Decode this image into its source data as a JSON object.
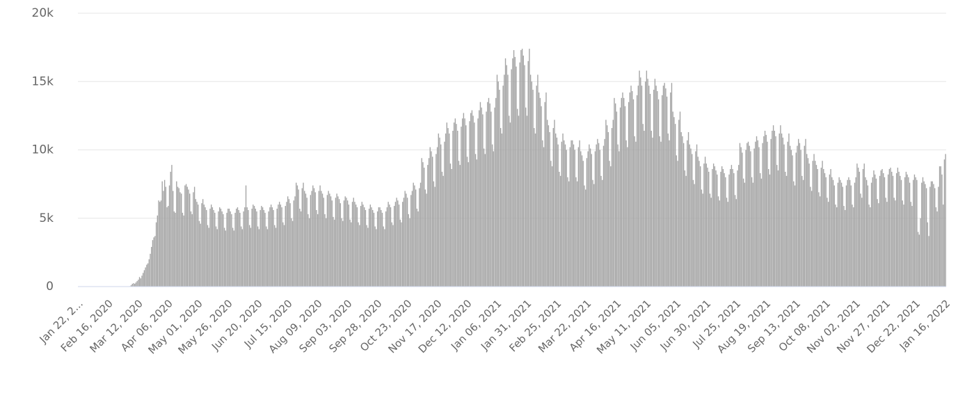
{
  "chart_data": {
    "type": "bar",
    "color": "#a3a3a3",
    "grid": true,
    "ylim": [
      0,
      20000
    ],
    "yticks": [
      0,
      {
        "value": 5000,
        "label": "5k"
      },
      {
        "value": 10000,
        "label": "10k"
      },
      {
        "value": 15000,
        "label": "15k"
      },
      {
        "value": 20000,
        "label": "20k"
      }
    ],
    "categories": [
      "Jan 22, 2...",
      null,
      null,
      null,
      null,
      null,
      null,
      null,
      null,
      null,
      null,
      null,
      null,
      null,
      null,
      null,
      null,
      null,
      null,
      null,
      null,
      null,
      null,
      null,
      null,
      "Feb 16, 2020",
      null,
      null,
      null,
      null,
      null,
      null,
      null,
      null,
      null,
      null,
      null,
      null,
      null,
      null,
      null,
      null,
      null,
      null,
      null,
      null,
      null,
      null,
      null,
      null,
      "Mar 12, 2020",
      null,
      null,
      null,
      null,
      null,
      null,
      null,
      null,
      null,
      null,
      null,
      null,
      null,
      null,
      null,
      null,
      null,
      null,
      null,
      null,
      null,
      null,
      null,
      null,
      "Apr 06, 2020",
      null,
      null,
      null,
      null,
      null,
      null,
      null,
      null,
      null,
      null,
      null,
      null,
      null,
      null,
      null,
      null,
      null,
      null,
      null,
      null,
      null,
      null,
      null,
      null,
      "May 01, 2020",
      null,
      null,
      null,
      null,
      null,
      null,
      null,
      null,
      null,
      null,
      null,
      null,
      null,
      null,
      null,
      null,
      null,
      null,
      null,
      null,
      null,
      null,
      null,
      null,
      "May 26, 2020",
      null,
      null,
      null,
      null,
      null,
      null,
      null,
      null,
      null,
      null,
      null,
      null,
      null,
      null,
      null,
      null,
      null,
      null,
      null,
      null,
      null,
      null,
      null,
      null,
      "Jun 20, 2020",
      null,
      null,
      null,
      null,
      null,
      null,
      null,
      null,
      null,
      null,
      null,
      null,
      null,
      null,
      null,
      null,
      null,
      null,
      null,
      null,
      null,
      null,
      null,
      null,
      "Jul 15, 2020",
      null,
      null,
      null,
      null,
      null,
      null,
      null,
      null,
      null,
      null,
      null,
      null,
      null,
      null,
      null,
      null,
      null,
      null,
      null,
      null,
      null,
      null,
      null,
      null,
      "Aug 09, 2020",
      null,
      null,
      null,
      null,
      null,
      null,
      null,
      null,
      null,
      null,
      null,
      null,
      null,
      null,
      null,
      null,
      null,
      null,
      null,
      null,
      null,
      null,
      null,
      null,
      "Sep 03, 2020",
      null,
      null,
      null,
      null,
      null,
      null,
      null,
      null,
      null,
      null,
      null,
      null,
      null,
      null,
      null,
      null,
      null,
      null,
      null,
      null,
      null,
      null,
      null,
      null,
      "Sep 28, 2020",
      null,
      null,
      null,
      null,
      null,
      null,
      null,
      null,
      null,
      null,
      null,
      null,
      null,
      null,
      null,
      null,
      null,
      null,
      null,
      null,
      null,
      null,
      null,
      null,
      "Oct 23, 2020",
      null,
      null,
      null,
      null,
      null,
      null,
      null,
      null,
      null,
      null,
      null,
      null,
      null,
      null,
      null,
      null,
      null,
      null,
      null,
      null,
      null,
      null,
      null,
      null,
      "Nov 17, 2020",
      null,
      null,
      null,
      null,
      null,
      null,
      null,
      null,
      null,
      null,
      null,
      null,
      null,
      null,
      null,
      null,
      null,
      null,
      null,
      null,
      null,
      null,
      null,
      null,
      "Dec 12, 2020",
      null,
      null,
      null,
      null,
      null,
      null,
      null,
      null,
      null,
      null,
      null,
      null,
      null,
      null,
      null,
      null,
      null,
      null,
      null,
      null,
      null,
      null,
      null,
      null,
      "Jan 06, 2021",
      null,
      null,
      null,
      null,
      null,
      null,
      null,
      null,
      null,
      null,
      null,
      null,
      null,
      null,
      null,
      null,
      null,
      null,
      null,
      null,
      null,
      null,
      null,
      null,
      "Jan 31, 2021",
      null,
      null,
      null,
      null,
      null,
      null,
      null,
      null,
      null,
      null,
      null,
      null,
      null,
      null,
      null,
      null,
      null,
      null,
      null,
      null,
      null,
      null,
      null,
      null,
      "Feb 25, 2021",
      null,
      null,
      null,
      null,
      null,
      null,
      null,
      null,
      null,
      null,
      null,
      null,
      null,
      null,
      null,
      null,
      null,
      null,
      null,
      null,
      null,
      null,
      null,
      null,
      "Mar 22, 2021",
      null,
      null,
      null,
      null,
      null,
      null,
      null,
      null,
      null,
      null,
      null,
      null,
      null,
      null,
      null,
      null,
      null,
      null,
      null,
      null,
      null,
      null,
      null,
      null,
      "Apr 16, 2021",
      null,
      null,
      null,
      null,
      null,
      null,
      null,
      null,
      null,
      null,
      null,
      null,
      null,
      null,
      null,
      null,
      null,
      null,
      null,
      null,
      null,
      null,
      null,
      null,
      "May 11, 2021",
      null,
      null,
      null,
      null,
      null,
      null,
      null,
      null,
      null,
      null,
      null,
      null,
      null,
      null,
      null,
      null,
      null,
      null,
      null,
      null,
      null,
      null,
      null,
      null,
      "Jun 05, 2021",
      null,
      null,
      null,
      null,
      null,
      null,
      null,
      null,
      null,
      null,
      null,
      null,
      null,
      null,
      null,
      null,
      null,
      null,
      null,
      null,
      null,
      null,
      null,
      null,
      "Jun 30, 2021",
      null,
      null,
      null,
      null,
      null,
      null,
      null,
      null,
      null,
      null,
      null,
      null,
      null,
      null,
      null,
      null,
      null,
      null,
      null,
      null,
      null,
      null,
      null,
      null,
      "Jul 25, 2021",
      null,
      null,
      null,
      null,
      null,
      null,
      null,
      null,
      null,
      null,
      null,
      null,
      null,
      null,
      null,
      null,
      null,
      null,
      null,
      null,
      null,
      null,
      null,
      null,
      "Aug 19, 2021",
      null,
      null,
      null,
      null,
      null,
      null,
      null,
      null,
      null,
      null,
      null,
      null,
      null,
      null,
      null,
      null,
      null,
      null,
      null,
      null,
      null,
      null,
      null,
      null,
      "Sep 13, 2021",
      null,
      null,
      null,
      null,
      null,
      null,
      null,
      null,
      null,
      null,
      null,
      null,
      null,
      null,
      null,
      null,
      null,
      null,
      null,
      null,
      null,
      null,
      null,
      null,
      "Oct 08, 2021",
      null,
      null,
      null,
      null,
      null,
      null,
      null,
      null,
      null,
      null,
      null,
      null,
      null,
      null,
      null,
      null,
      null,
      null,
      null,
      null,
      null,
      null,
      null,
      null,
      "Nov 02, 2021",
      null,
      null,
      null,
      null,
      null,
      null,
      null,
      null,
      null,
      null,
      null,
      null,
      null,
      null,
      null,
      null,
      null,
      null,
      null,
      null,
      null,
      null,
      null,
      null,
      "Nov 27, 2021",
      null,
      null,
      null,
      null,
      null,
      null,
      null,
      null,
      null,
      null,
      null,
      null,
      null,
      null,
      null,
      null,
      null,
      null,
      null,
      null,
      null,
      null,
      null,
      null,
      "Dec 22, 2021",
      null,
      null,
      null,
      null,
      null,
      null,
      null,
      null,
      null,
      null,
      null,
      null,
      null,
      null,
      null,
      null,
      null,
      null,
      null,
      null,
      null,
      null,
      null,
      null,
      "Jan 16, 2022"
    ],
    "values": [
      0,
      0,
      0,
      0,
      0,
      0,
      0,
      0,
      0,
      0,
      0,
      0,
      0,
      0,
      0,
      0,
      0,
      0,
      0,
      0,
      0,
      0,
      0,
      0,
      0,
      0,
      0,
      0,
      0,
      0,
      0,
      0,
      0,
      0,
      0,
      0,
      0,
      0,
      0,
      0,
      0,
      10,
      20,
      30,
      100,
      200,
      250,
      200,
      300,
      400,
      500,
      700,
      600,
      800,
      1000,
      1200,
      1400,
      1600,
      1700,
      2000,
      2400,
      2900,
      3400,
      3600,
      3700,
      4700,
      5200,
      6300,
      6200,
      6300,
      7700,
      7000,
      7800,
      7300,
      5800,
      5900,
      7400,
      8400,
      8900,
      7000,
      5500,
      5400,
      7700,
      7300,
      7200,
      6900,
      6800,
      5400,
      5200,
      7400,
      7500,
      7300,
      7100,
      6800,
      5500,
      5300,
      6900,
      7300,
      6400,
      6200,
      6000,
      4800,
      4600,
      6100,
      6400,
      6000,
      5800,
      5600,
      4500,
      4300,
      5700,
      6000,
      5800,
      5600,
      5400,
      4400,
      4200,
      5500,
      5800,
      5700,
      5500,
      5300,
      4300,
      4100,
      5400,
      5700,
      5700,
      5500,
      5300,
      4300,
      4100,
      5400,
      5700,
      5800,
      5600,
      5400,
      4400,
      4200,
      5500,
      5800,
      7400,
      5800,
      5600,
      4500,
      4300,
      5700,
      6000,
      5900,
      5700,
      5500,
      4400,
      4200,
      5600,
      5900,
      5800,
      5600,
      5400,
      4400,
      4200,
      5500,
      5800,
      6000,
      5800,
      5600,
      4500,
      4300,
      5700,
      6000,
      6200,
      6000,
      5800,
      4700,
      4500,
      5900,
      6200,
      6600,
      6400,
      6100,
      5000,
      4800,
      6300,
      6600,
      7600,
      7400,
      7100,
      5700,
      5500,
      7200,
      7600,
      7000,
      6800,
      6500,
      5300,
      5000,
      6700,
      7000,
      7400,
      7200,
      6900,
      5600,
      5300,
      7000,
      7400,
      7000,
      6800,
      6500,
      5300,
      5000,
      6700,
      7000,
      6800,
      6600,
      6300,
      5100,
      4900,
      6500,
      6800,
      6600,
      6400,
      6100,
      5000,
      4800,
      6300,
      6600,
      6500,
      6300,
      6000,
      4900,
      4700,
      6200,
      6500,
      6200,
      6000,
      5800,
      4700,
      4500,
      5900,
      6200,
      6000,
      5800,
      5600,
      4500,
      4300,
      5700,
      6000,
      5800,
      5600,
      5400,
      4400,
      4200,
      5500,
      5800,
      5800,
      5600,
      5400,
      4400,
      4200,
      5500,
      5800,
      6200,
      6000,
      5800,
      4700,
      4500,
      5900,
      6200,
      6500,
      6300,
      6000,
      4900,
      4700,
      6200,
      6500,
      7000,
      6800,
      6500,
      5300,
      5000,
      6700,
      7000,
      7600,
      7400,
      7100,
      5700,
      5500,
      7200,
      7600,
      9400,
      9100,
      8700,
      7100,
      6800,
      8900,
      9400,
      10200,
      9900,
      9500,
      7700,
      7300,
      9700,
      10200,
      11200,
      10900,
      10400,
      8400,
      8100,
      10600,
      11200,
      12000,
      11600,
      11200,
      9000,
      8600,
      11400,
      12000,
      12300,
      11900,
      11400,
      9200,
      8900,
      11700,
      12300,
      12700,
      12300,
      11800,
      9500,
      9100,
      12100,
      12700,
      12900,
      12500,
      12000,
      9700,
      9300,
      12300,
      12900,
      13500,
      13100,
      12600,
      10100,
      9700,
      12800,
      13500,
      13800,
      13400,
      12800,
      10400,
      9900,
      13100,
      13800,
      15500,
      15000,
      14400,
      11600,
      11200,
      14700,
      15500,
      16700,
      16200,
      15500,
      12500,
      12000,
      15900,
      16700,
      17300,
      16800,
      16100,
      13000,
      12500,
      16400,
      17300,
      17400,
      16900,
      16200,
      13100,
      12500,
      16500,
      17400,
      15500,
      15000,
      14400,
      11600,
      11200,
      14700,
      15500,
      14200,
      13800,
      13200,
      10700,
      10200,
      13500,
      14200,
      12200,
      11800,
      11300,
      9200,
      8800,
      11600,
      12200,
      11200,
      10900,
      10400,
      8400,
      8100,
      10600,
      11200,
      10700,
      10400,
      10000,
      8000,
      7700,
      10200,
      10700,
      10700,
      10400,
      10000,
      8000,
      7700,
      10200,
      10700,
      9900,
      9600,
      9200,
      7400,
      7100,
      9400,
      9900,
      10400,
      10100,
      9700,
      7800,
      7500,
      9900,
      10400,
      10800,
      10500,
      10000,
      8100,
      7800,
      10300,
      10800,
      12200,
      11800,
      11300,
      9200,
      8800,
      11600,
      12200,
      13800,
      13400,
      12800,
      10400,
      9900,
      13100,
      13800,
      14200,
      13800,
      13200,
      10700,
      10200,
      13500,
      14200,
      14700,
      14300,
      13700,
      11000,
      10600,
      14000,
      14700,
      15800,
      15300,
      14700,
      11900,
      11400,
      15000,
      15800,
      15200,
      14700,
      14100,
      11400,
      10900,
      14400,
      15200,
      14700,
      14300,
      13700,
      11000,
      10600,
      14000,
      14700,
      14900,
      14500,
      13900,
      11200,
      10700,
      14200,
      14900,
      12800,
      12400,
      11900,
      9600,
      9200,
      12200,
      12800,
      11300,
      11000,
      10500,
      8500,
      8100,
      10700,
      11300,
      10400,
      10100,
      9700,
      7800,
      7500,
      9900,
      10400,
      9500,
      9200,
      8800,
      7100,
      6800,
      9000,
      9500,
      9000,
      8700,
      8400,
      6800,
      6500,
      8600,
      9000,
      8800,
      8500,
      8200,
      6600,
      6300,
      8400,
      8800,
      8600,
      8300,
      8000,
      6500,
      6200,
      8200,
      8600,
      8900,
      8600,
      8300,
      6700,
      6400,
      8500,
      8900,
      10500,
      10200,
      9800,
      7900,
      7600,
      10000,
      10500,
      10600,
      10300,
      9900,
      8000,
      7600,
      10100,
      10600,
      11000,
      10700,
      10200,
      8300,
      7900,
      10500,
      11000,
      11400,
      11100,
      10600,
      8600,
      8200,
      10800,
      11400,
      11800,
      11400,
      11000,
      8900,
      8500,
      11200,
      11800,
      11200,
      10900,
      10400,
      8400,
      8100,
      10600,
      11200,
      10300,
      10000,
      9600,
      7700,
      7400,
      9800,
      10300,
      10800,
      10500,
      10000,
      8100,
      7800,
      10300,
      10800,
      9700,
      9400,
      9000,
      7300,
      7000,
      9200,
      9700,
      9200,
      8900,
      8600,
      6900,
      6600,
      8700,
      9200,
      8600,
      8300,
      8000,
      6500,
      6200,
      8200,
      8600,
      8000,
      7800,
      7400,
      6000,
      5800,
      7600,
      8000,
      7800,
      7600,
      7300,
      5900,
      5600,
      7400,
      7800,
      8000,
      7800,
      7400,
      6000,
      5800,
      7600,
      8000,
      9000,
      8700,
      8400,
      6800,
      6500,
      8600,
      9000,
      8000,
      7800,
      7400,
      6000,
      5800,
      7600,
      8000,
      8500,
      8200,
      7900,
      6400,
      6100,
      8100,
      8500,
      8600,
      8300,
      8000,
      6500,
      6200,
      8200,
      8600,
      8700,
      8400,
      8100,
      6500,
      6300,
      8300,
      8700,
      8400,
      8100,
      7800,
      6300,
      6000,
      8000,
      8400,
      8200,
      8000,
      7600,
      6200,
      5900,
      7800,
      8200,
      8000,
      7800,
      4000,
      3800,
      5000,
      7600,
      8000,
      7700,
      7500,
      7200,
      4700,
      3700,
      7300,
      7700,
      7700,
      7500,
      7200,
      5800,
      5500,
      7300,
      8800,
      8800,
      8200,
      6000,
      9300,
      9700
    ]
  }
}
